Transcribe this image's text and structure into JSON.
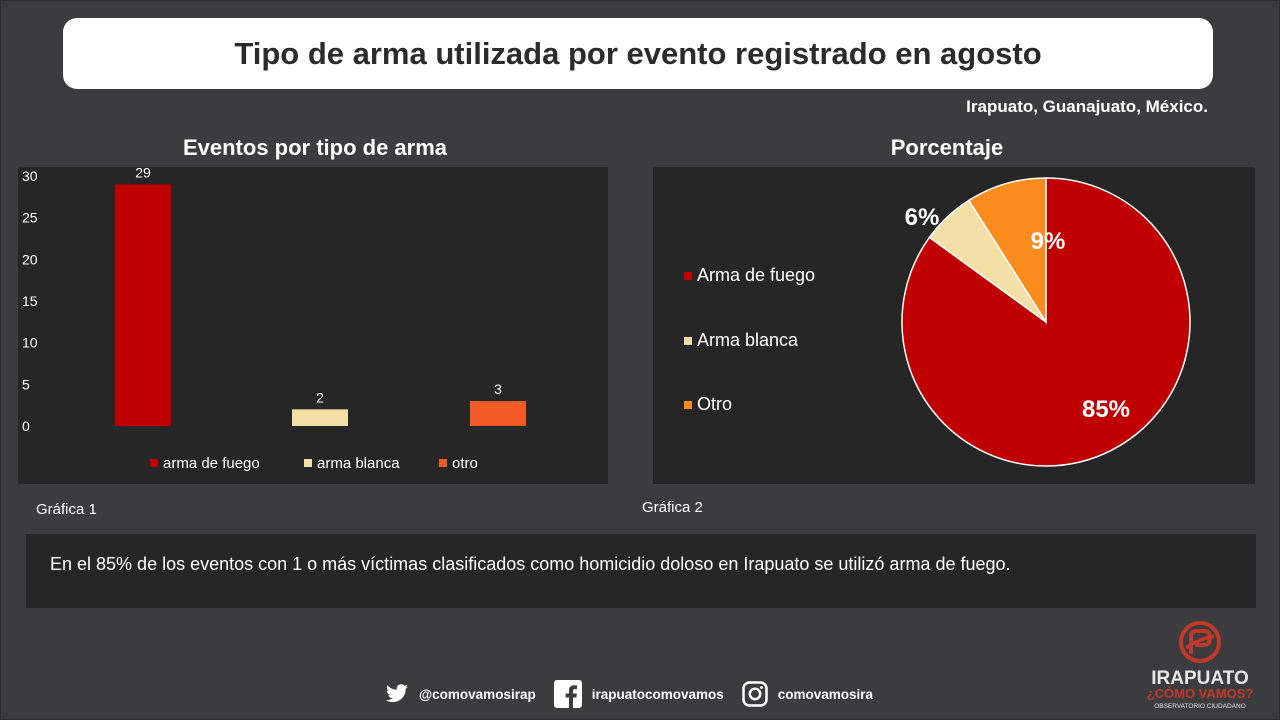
{
  "header": {
    "title": "Tipo de arma utilizada por evento registrado en agosto",
    "location": "Irapuato, Guanajuato, México."
  },
  "chart_data": [
    {
      "type": "bar",
      "title": "Eventos por tipo de arma",
      "categories": [
        "arma de fuego",
        "arma blanca",
        "otro"
      ],
      "values": [
        29,
        2,
        3
      ],
      "colors": [
        "#c00000",
        "#f2e0a6",
        "#f15a22"
      ],
      "ylim": [
        0,
        30
      ],
      "yticks": [
        "0",
        "5",
        "10",
        "15",
        "20",
        "25",
        "30"
      ],
      "legend": "bottom",
      "grid": false,
      "caption": "Gráfica 1"
    },
    {
      "type": "pie",
      "title": "Porcentaje",
      "labels": [
        "Arma de fuego",
        "Arma blanca",
        "Otro"
      ],
      "values": [
        85,
        6,
        9
      ],
      "value_labels": [
        "85%",
        "6%",
        "9%"
      ],
      "colors": [
        "#c00000",
        "#f2e0a6",
        "#fa8c1e"
      ],
      "legend": "left",
      "caption": "Gráfica 2"
    }
  ],
  "summary": {
    "text": "En el 85% de los eventos con 1 o más víctimas clasificados como homicidio doloso en Irapuato se utilizó arma de fuego."
  },
  "footer": {
    "twitter": "@comovamosirap",
    "facebook": "irapuatocomovamos",
    "instagram": "comovamosira",
    "icons": [
      "twitter-icon",
      "facebook-icon",
      "instagram-icon"
    ]
  },
  "logo": {
    "line1": "IRAPUATO",
    "line2": "¿CÓMO VAMOS?",
    "line3": "OBSERVATORIO CIUDADANO",
    "color": "#c0392b"
  }
}
